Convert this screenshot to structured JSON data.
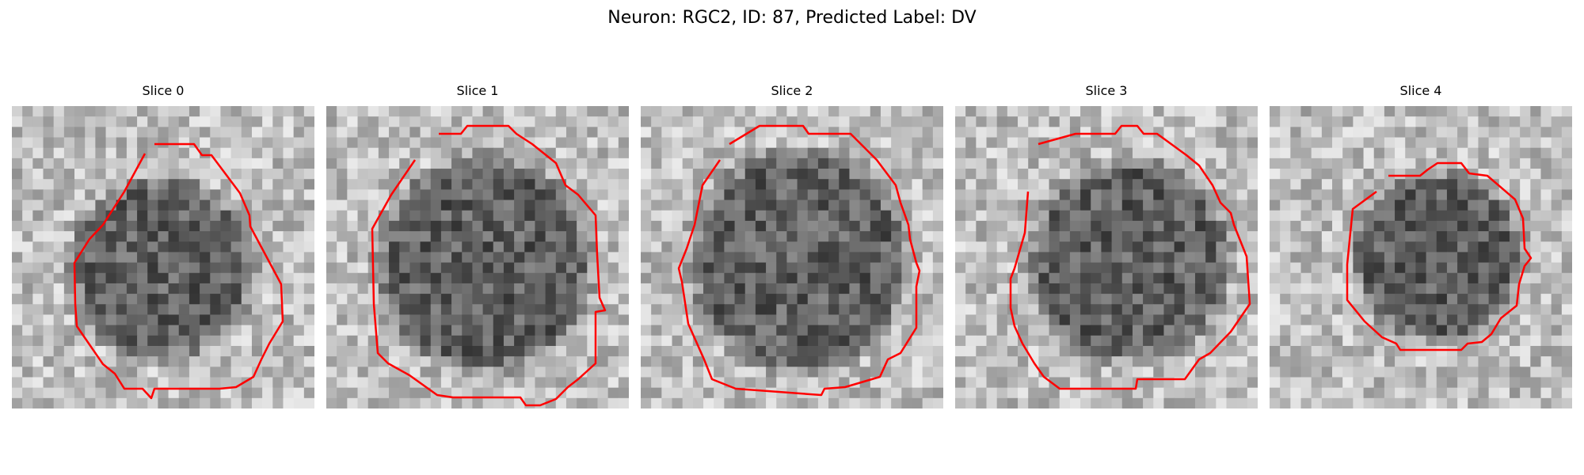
{
  "figure": {
    "title": "Neuron: RGC2, ID: 87, Predicted Label: DV"
  },
  "panels": [
    {
      "title": "Slice 0"
    },
    {
      "title": "Slice 1"
    },
    {
      "title": "Slice 2"
    },
    {
      "title": "Slice 3"
    },
    {
      "title": "Slice 4"
    }
  ],
  "colors": {
    "contour": "#ff0000",
    "image_colormap": "grayscale",
    "background": "#ffffff"
  }
}
